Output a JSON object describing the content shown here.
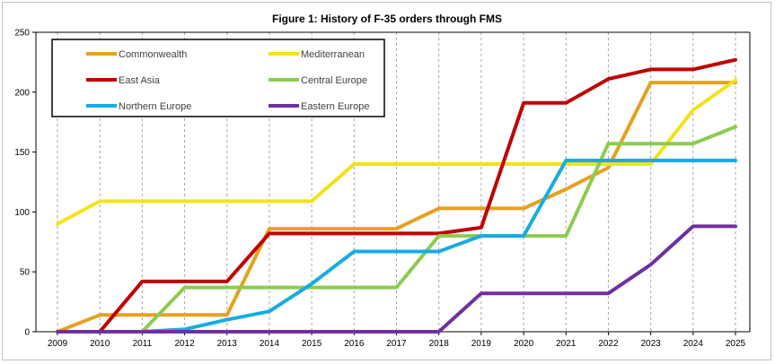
{
  "chart_data": {
    "type": "line",
    "title": "Figure 1: History of F-35 orders through FMS",
    "xlabel": "",
    "ylabel": "",
    "x": [
      2009,
      2010,
      2011,
      2012,
      2013,
      2014,
      2015,
      2016,
      2017,
      2018,
      2019,
      2020,
      2021,
      2022,
      2023,
      2024,
      2025
    ],
    "x_tick_labels": [
      "2009",
      "2010",
      "2011",
      "2012",
      "2013",
      "2014",
      "2015",
      "2016",
      "2017",
      "2018",
      "2019",
      "2020",
      "2021",
      "2022",
      "2023",
      "2024",
      "2025"
    ],
    "ylim": [
      0,
      250
    ],
    "y_ticks": [
      0,
      50,
      100,
      150,
      200,
      250
    ],
    "y_tick_labels": [
      "0",
      "50",
      "100",
      "150",
      "200",
      "250"
    ],
    "grid": "vertical dashed",
    "legend_position": "top-left",
    "series": [
      {
        "name": "Commonwealth",
        "color": "#E6A020",
        "values": [
          0,
          14,
          14,
          14,
          14,
          86,
          86,
          86,
          86,
          103,
          103,
          103,
          119,
          137,
          208,
          208,
          208
        ]
      },
      {
        "name": "Mediterranean",
        "color": "#F2E21C",
        "values": [
          90,
          109,
          109,
          109,
          109,
          109,
          109,
          140,
          140,
          140,
          140,
          140,
          140,
          140,
          140,
          185,
          210
        ]
      },
      {
        "name": "East Asia",
        "color": "#C00000",
        "values": [
          null,
          0,
          42,
          42,
          42,
          82,
          82,
          82,
          82,
          82,
          87,
          191,
          191,
          211,
          219,
          219,
          227
        ]
      },
      {
        "name": "Central Europe",
        "color": "#8CCB50",
        "values": [
          null,
          null,
          0,
          37,
          37,
          37,
          37,
          37,
          37,
          80,
          80,
          80,
          80,
          157,
          157,
          157,
          171
        ]
      },
      {
        "name": "Northern Europe",
        "color": "#17ACE3",
        "values": [
          null,
          null,
          0,
          2,
          10,
          17,
          40,
          67,
          67,
          67,
          80,
          80,
          143,
          143,
          143,
          143,
          143
        ]
      },
      {
        "name": "Eastern Europe",
        "color": "#7030A0",
        "values": [
          0,
          0,
          0,
          0,
          0,
          0,
          0,
          0,
          0,
          0,
          32,
          32,
          32,
          32,
          56,
          88,
          88
        ]
      }
    ]
  }
}
